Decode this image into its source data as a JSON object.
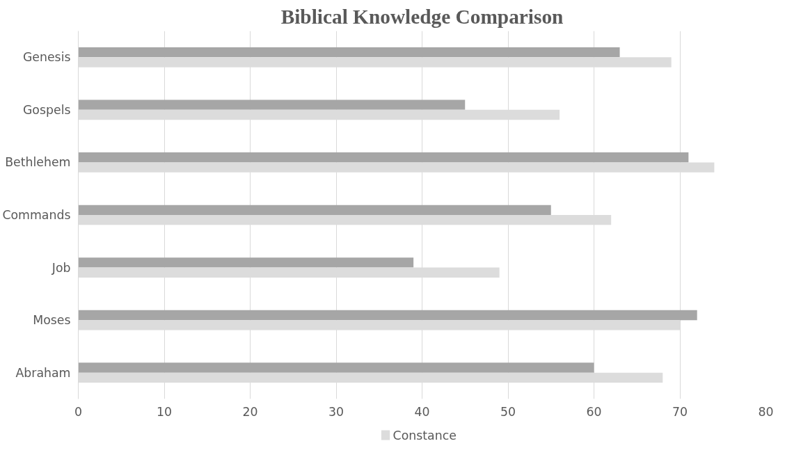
{
  "chart_data": {
    "type": "bar",
    "orientation": "horizontal",
    "title": "Biblical Knowledge Comparison",
    "categories": [
      "Genesis",
      "Gospels",
      "Bethlehem",
      "Commands",
      "Job",
      "Moses",
      "Abraham"
    ],
    "series": [
      {
        "color": "#a6a6a6",
        "values": [
          63,
          45,
          71,
          55,
          39,
          72,
          60
        ]
      },
      {
        "name": "Constance",
        "color": "#dcdcdc",
        "values": [
          69,
          56,
          74,
          62,
          49,
          70,
          68
        ]
      }
    ],
    "xlim": [
      0,
      80
    ],
    "xticks": [
      0,
      10,
      20,
      30,
      40,
      50,
      60,
      70,
      80
    ],
    "grid": "x",
    "legend": "bottom"
  }
}
